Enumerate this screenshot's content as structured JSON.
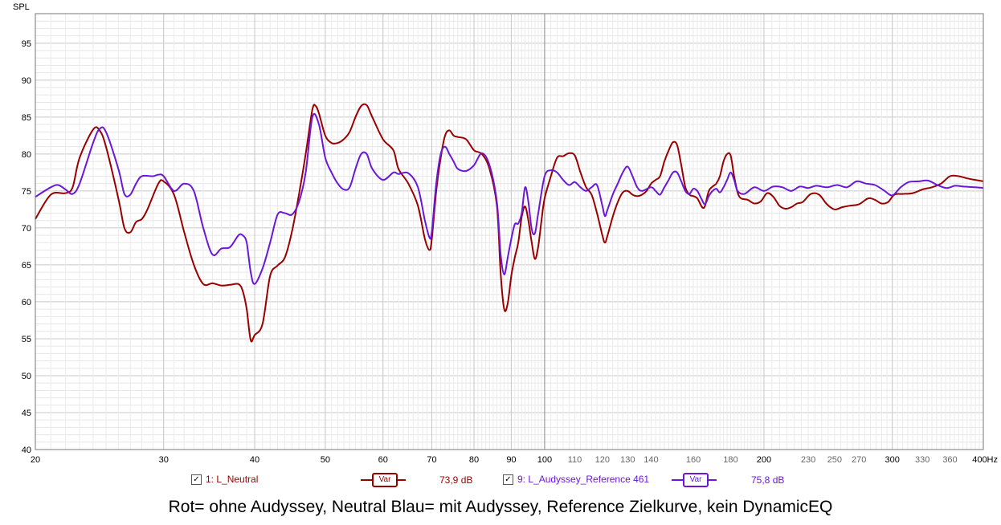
{
  "chart_data": {
    "type": "line",
    "ylabel": "SPL",
    "x_scale": "log",
    "xlim": [
      20,
      400
    ],
    "ylim": [
      40,
      99
    ],
    "x_ticks": [
      20,
      30,
      40,
      50,
      60,
      70,
      80,
      90,
      100,
      110,
      120,
      130,
      140,
      160,
      180,
      200,
      230,
      250,
      270,
      300,
      330,
      360,
      400
    ],
    "x_tick_labels": [
      "20",
      "30",
      "40",
      "50",
      "60",
      "70",
      "80",
      "90",
      "100",
      "110",
      "120",
      "130",
      "140",
      "160",
      "180",
      "200",
      "230",
      "250",
      "270",
      "300",
      "330",
      "360",
      "400Hz"
    ],
    "y_ticks": [
      40,
      45,
      50,
      55,
      60,
      65,
      70,
      75,
      80,
      85,
      90,
      95
    ],
    "grid": true,
    "series": [
      {
        "name": "1: L_Neutral",
        "color": "#990000",
        "points": [
          [
            20,
            71.2
          ],
          [
            21,
            74.5
          ],
          [
            22,
            74.7
          ],
          [
            22.5,
            75.5
          ],
          [
            23,
            79.5
          ],
          [
            24,
            83.3
          ],
          [
            24.5,
            83.2
          ],
          [
            25,
            81
          ],
          [
            26,
            74
          ],
          [
            26.5,
            70
          ],
          [
            27,
            69.4
          ],
          [
            27.5,
            70.8
          ],
          [
            28,
            71.2
          ],
          [
            28.5,
            72.5
          ],
          [
            29.5,
            76
          ],
          [
            30,
            76.3
          ],
          [
            31,
            74.5
          ],
          [
            32,
            69.5
          ],
          [
            33,
            65
          ],
          [
            34,
            62.4
          ],
          [
            35,
            62.5
          ],
          [
            36,
            62.2
          ],
          [
            37,
            62.3
          ],
          [
            38,
            62.4
          ],
          [
            38.5,
            61.5
          ],
          [
            39,
            59
          ],
          [
            39.5,
            54.8
          ],
          [
            40,
            55.5
          ],
          [
            41,
            57
          ],
          [
            42,
            63.5
          ],
          [
            43,
            64.9
          ],
          [
            44,
            66
          ],
          [
            45,
            69.5
          ],
          [
            46,
            74.5
          ],
          [
            47,
            80
          ],
          [
            48,
            86
          ],
          [
            48.5,
            86.5
          ],
          [
            49,
            85.5
          ],
          [
            50,
            82.5
          ],
          [
            51,
            81.5
          ],
          [
            52,
            81.5
          ],
          [
            53,
            82
          ],
          [
            54,
            83
          ],
          [
            55,
            85
          ],
          [
            56,
            86.5
          ],
          [
            57,
            86.6
          ],
          [
            58,
            85
          ],
          [
            60,
            82
          ],
          [
            62,
            80.5
          ],
          [
            63,
            78
          ],
          [
            65,
            76
          ],
          [
            67,
            73
          ],
          [
            68.5,
            68.5
          ],
          [
            69.5,
            67
          ],
          [
            70,
            68.5
          ],
          [
            71,
            75
          ],
          [
            72,
            79.5
          ],
          [
            73,
            82.5
          ],
          [
            74,
            83.2
          ],
          [
            75,
            82.5
          ],
          [
            76,
            82.3
          ],
          [
            78,
            82
          ],
          [
            80,
            80.5
          ],
          [
            82,
            80
          ],
          [
            84,
            78
          ],
          [
            86,
            73
          ],
          [
            87,
            64
          ],
          [
            88,
            59
          ],
          [
            89,
            59.8
          ],
          [
            90,
            63.5
          ],
          [
            91,
            66
          ],
          [
            92,
            68
          ],
          [
            93,
            71.5
          ],
          [
            94,
            72.9
          ],
          [
            95,
            71
          ],
          [
            96,
            68
          ],
          [
            97,
            65.8
          ],
          [
            98,
            67.5
          ],
          [
            99,
            71
          ],
          [
            100,
            74
          ],
          [
            102,
            77
          ],
          [
            104,
            79.5
          ],
          [
            106,
            79.7
          ],
          [
            108,
            80.1
          ],
          [
            110,
            79.8
          ],
          [
            112,
            77.5
          ],
          [
            114,
            75.5
          ],
          [
            116,
            74.5
          ],
          [
            118,
            72
          ],
          [
            120,
            69
          ],
          [
            121,
            68
          ],
          [
            122,
            69
          ],
          [
            124,
            71.5
          ],
          [
            126,
            73.5
          ],
          [
            128,
            74.8
          ],
          [
            130,
            75
          ],
          [
            132,
            74.5
          ],
          [
            134,
            74.3
          ],
          [
            136,
            74.5
          ],
          [
            138,
            75
          ],
          [
            140,
            76
          ],
          [
            142,
            76.5
          ],
          [
            144,
            77
          ],
          [
            146,
            79
          ],
          [
            148,
            80.5
          ],
          [
            150,
            81.6
          ],
          [
            152,
            81.2
          ],
          [
            154,
            78.5
          ],
          [
            156,
            75.5
          ],
          [
            158,
            74.5
          ],
          [
            160,
            74.3
          ],
          [
            162,
            74
          ],
          [
            164,
            73
          ],
          [
            165,
            72.7
          ],
          [
            166,
            73
          ],
          [
            168,
            75
          ],
          [
            170,
            75.6
          ],
          [
            172,
            76
          ],
          [
            174,
            77
          ],
          [
            176,
            79
          ],
          [
            178,
            80
          ],
          [
            180,
            79.8
          ],
          [
            182,
            77
          ],
          [
            184,
            74.8
          ],
          [
            186,
            74
          ],
          [
            190,
            73.8
          ],
          [
            194,
            73.3
          ],
          [
            198,
            73.6
          ],
          [
            202,
            74.7
          ],
          [
            206,
            74.2
          ],
          [
            210,
            73
          ],
          [
            214,
            72.6
          ],
          [
            218,
            72.8
          ],
          [
            222,
            73.3
          ],
          [
            226,
            73.5
          ],
          [
            232,
            74.6
          ],
          [
            238,
            74.5
          ],
          [
            244,
            73.2
          ],
          [
            250,
            72.5
          ],
          [
            256,
            72.8
          ],
          [
            262,
            73
          ],
          [
            270,
            73.2
          ],
          [
            278,
            74
          ],
          [
            284,
            73.8
          ],
          [
            290,
            73.3
          ],
          [
            296,
            73.5
          ],
          [
            302,
            74.5
          ],
          [
            310,
            74.6
          ],
          [
            320,
            74.7
          ],
          [
            330,
            75.2
          ],
          [
            340,
            75.5
          ],
          [
            350,
            76
          ],
          [
            360,
            77
          ],
          [
            370,
            77
          ],
          [
            380,
            76.7
          ],
          [
            390,
            76.5
          ],
          [
            400,
            76.3
          ]
        ]
      },
      {
        "name": "9: L_Audyssey_Reference 461",
        "color": "#6a17d8",
        "points": [
          [
            20,
            74.2
          ],
          [
            21,
            75.5
          ],
          [
            21.5,
            75.8
          ],
          [
            22,
            75.2
          ],
          [
            22.5,
            74.6
          ],
          [
            23,
            76
          ],
          [
            24,
            81.5
          ],
          [
            24.5,
            83.4
          ],
          [
            25,
            83
          ],
          [
            26,
            78
          ],
          [
            26.5,
            74.6
          ],
          [
            27,
            74.5
          ],
          [
            27.5,
            76
          ],
          [
            28,
            77
          ],
          [
            29,
            77
          ],
          [
            29.5,
            77.2
          ],
          [
            30,
            77
          ],
          [
            31,
            75
          ],
          [
            32,
            76
          ],
          [
            33,
            75
          ],
          [
            34,
            70
          ],
          [
            35,
            66.4
          ],
          [
            36,
            67.2
          ],
          [
            37,
            67.4
          ],
          [
            38,
            69
          ],
          [
            38.5,
            69
          ],
          [
            39,
            68
          ],
          [
            39.5,
            64
          ],
          [
            40,
            62.4
          ],
          [
            41,
            64.5
          ],
          [
            42,
            68
          ],
          [
            43,
            71.8
          ],
          [
            44,
            72
          ],
          [
            45,
            71.8
          ],
          [
            46,
            73.5
          ],
          [
            47,
            77.5
          ],
          [
            48,
            85
          ],
          [
            49,
            84
          ],
          [
            50,
            79.5
          ],
          [
            51,
            77.5
          ],
          [
            52,
            76
          ],
          [
            53,
            75.2
          ],
          [
            54,
            75.5
          ],
          [
            55,
            78
          ],
          [
            56,
            80
          ],
          [
            57,
            80
          ],
          [
            58,
            78
          ],
          [
            60,
            76.5
          ],
          [
            62,
            77.5
          ],
          [
            63,
            77.3
          ],
          [
            65,
            77.4
          ],
          [
            67,
            75.5
          ],
          [
            68.5,
            71
          ],
          [
            69.5,
            68.7
          ],
          [
            70,
            69.5
          ],
          [
            71,
            76
          ],
          [
            72,
            80
          ],
          [
            73,
            81
          ],
          [
            74,
            80
          ],
          [
            75,
            79
          ],
          [
            76,
            78
          ],
          [
            78,
            77.7
          ],
          [
            80,
            78.5
          ],
          [
            82,
            80.1
          ],
          [
            84,
            78.5
          ],
          [
            86,
            73.5
          ],
          [
            87,
            66.5
          ],
          [
            88,
            63.7
          ],
          [
            89,
            66
          ],
          [
            90,
            68.5
          ],
          [
            91,
            70.5
          ],
          [
            92,
            70.6
          ],
          [
            93,
            72
          ],
          [
            94,
            75.5
          ],
          [
            95,
            73.5
          ],
          [
            96,
            69.8
          ],
          [
            97,
            69.3
          ],
          [
            98,
            72
          ],
          [
            100,
            77
          ],
          [
            102,
            77.8
          ],
          [
            104,
            77.5
          ],
          [
            106,
            76.5
          ],
          [
            108,
            75.8
          ],
          [
            110,
            76.2
          ],
          [
            112,
            75.5
          ],
          [
            114,
            75
          ],
          [
            116,
            75.5
          ],
          [
            118,
            75.8
          ],
          [
            120,
            73
          ],
          [
            121,
            71.6
          ],
          [
            122,
            72.5
          ],
          [
            124,
            74.5
          ],
          [
            126,
            76
          ],
          [
            128,
            77.5
          ],
          [
            130,
            78.3
          ],
          [
            132,
            77
          ],
          [
            134,
            75.5
          ],
          [
            136,
            75
          ],
          [
            140,
            75.5
          ],
          [
            142,
            75
          ],
          [
            144,
            74.5
          ],
          [
            146,
            75.5
          ],
          [
            148,
            76.5
          ],
          [
            150,
            77.5
          ],
          [
            152,
            77.5
          ],
          [
            154,
            76.3
          ],
          [
            156,
            75
          ],
          [
            158,
            74.6
          ],
          [
            160,
            75.3
          ],
          [
            162,
            75
          ],
          [
            164,
            74
          ],
          [
            166,
            73.2
          ],
          [
            168,
            74.3
          ],
          [
            170,
            75
          ],
          [
            172,
            75.3
          ],
          [
            174,
            74.8
          ],
          [
            176,
            75.5
          ],
          [
            178,
            76.5
          ],
          [
            180,
            77.5
          ],
          [
            182,
            76.5
          ],
          [
            184,
            75
          ],
          [
            188,
            74.6
          ],
          [
            194,
            75.5
          ],
          [
            200,
            75
          ],
          [
            206,
            75.6
          ],
          [
            212,
            75.5
          ],
          [
            218,
            75
          ],
          [
            224,
            75.6
          ],
          [
            230,
            75.4
          ],
          [
            236,
            75.7
          ],
          [
            244,
            75.5
          ],
          [
            252,
            75.8
          ],
          [
            260,
            75.5
          ],
          [
            268,
            76.3
          ],
          [
            276,
            76
          ],
          [
            284,
            75.8
          ],
          [
            292,
            75.1
          ],
          [
            300,
            74.4
          ],
          [
            308,
            75.5
          ],
          [
            316,
            76.2
          ],
          [
            326,
            76.3
          ],
          [
            336,
            76.4
          ],
          [
            346,
            75.8
          ],
          [
            356,
            75.4
          ],
          [
            366,
            75.7
          ],
          [
            376,
            75.6
          ],
          [
            390,
            75.5
          ],
          [
            400,
            75.4
          ]
        ]
      }
    ]
  },
  "legend": [
    {
      "checkbox": true,
      "label": "1: L_Neutral",
      "var_label": "Var",
      "value": "73,9 dB",
      "color": "#990000"
    },
    {
      "checkbox": true,
      "label": "9: L_Audyssey_Reference 461",
      "var_label": "Var",
      "value": "75,8 dB",
      "color": "#6a17d8"
    }
  ],
  "caption": "Rot= ohne Audyssey, Neutral Blau= mit Audyssey, Reference Zielkurve, kein DynamicEQ"
}
